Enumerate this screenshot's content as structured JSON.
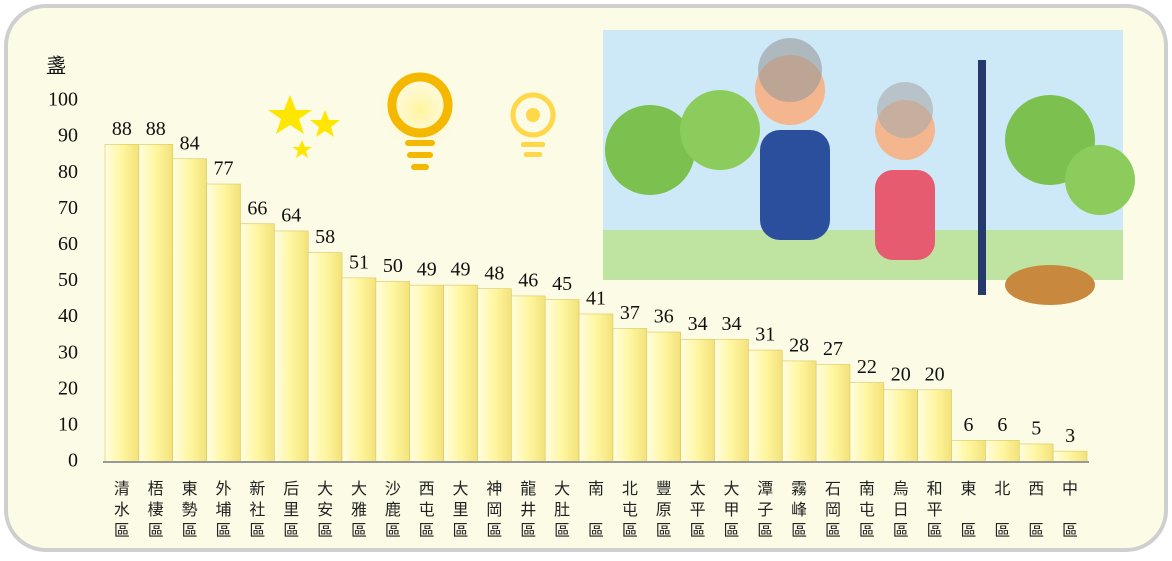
{
  "chart_data": {
    "type": "bar",
    "y_label": "盞",
    "categories": [
      "清水區",
      "梧棲區",
      "東勢區",
      "外埔區",
      "新社區",
      "后里區",
      "大安區",
      "大雅區",
      "沙鹿區",
      "西屯區",
      "大里區",
      "神岡區",
      "龍井區",
      "大肚區",
      "南區",
      "北屯區",
      "豐原區",
      "太平區",
      "大甲區",
      "潭子區",
      "霧峰區",
      "石岡區",
      "南屯區",
      "烏日區",
      "和平區",
      "東區",
      "北區",
      "西區",
      "中區"
    ],
    "values": [
      88,
      88,
      84,
      77,
      66,
      64,
      58,
      51,
      50,
      49,
      49,
      48,
      46,
      45,
      41,
      37,
      36,
      34,
      34,
      31,
      28,
      27,
      22,
      20,
      20,
      6,
      6,
      5,
      3
    ],
    "color": "#fff7a8",
    "ylim": [
      0,
      100
    ],
    "yticks": [
      0,
      10,
      20,
      30,
      40,
      50,
      60,
      70,
      80,
      90,
      100
    ],
    "grid": false
  }
}
